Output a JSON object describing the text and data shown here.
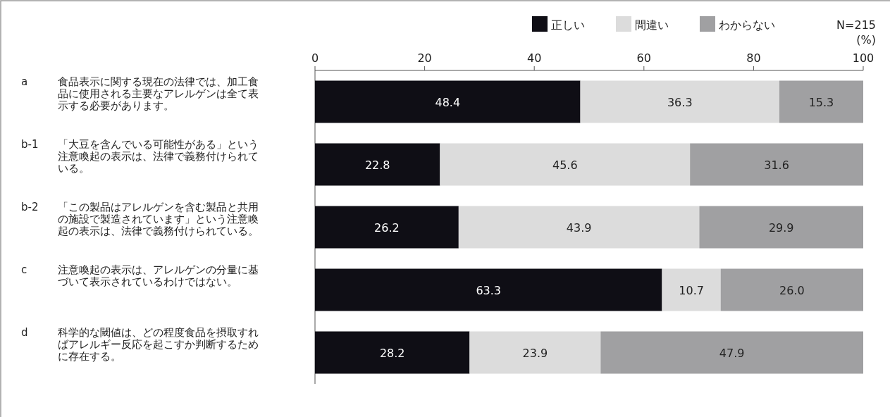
{
  "chart_data": {
    "type": "bar",
    "orientation": "horizontal",
    "stacked": true,
    "categories": [
      "a 食品表示に関する現在の法律では、加工食品に使用される主要なアレルゲンは全て表示する必要があります。",
      "b-1 「大豆を含んでいる可能性がある」という注意喚起の表示は、法律で義務付けられている。",
      "b-2 「この製品はアレルゲンを含む製品と共用の施設で製造されています」という注意喚起の表示は、法律で義務付けられている。",
      "c 注意喚起の表示は、アレルゲンの分量に基づいて表示されているわけではない。",
      "d 科学的な閾値は、どの程度食品を摂取すればアレルギー反応を起こすか判断するために存在する。"
    ],
    "series": [
      {
        "name": "正しい",
        "color": "#0f0e15",
        "values": [
          48.4,
          22.8,
          26.2,
          63.3,
          28.2
        ],
        "value_labels": [
          "48.4",
          "22.8",
          "26.2",
          "63.3",
          "28.2"
        ]
      },
      {
        "name": "間違い",
        "color": "#dcdcdc",
        "values": [
          36.3,
          45.6,
          43.9,
          10.7,
          23.9
        ],
        "value_labels": [
          "36.3",
          "45.6",
          "43.9",
          "10.7",
          "23.9"
        ]
      },
      {
        "name": "わからない",
        "color": "#a0a0a2",
        "values": [
          15.3,
          31.6,
          29.9,
          26.0,
          47.9
        ],
        "value_labels": [
          "15.3",
          "31.6",
          "29.9",
          "26.0",
          "47.9"
        ]
      }
    ],
    "xlim": [
      0,
      100
    ],
    "xticks": [
      0,
      20,
      40,
      60,
      80,
      100
    ],
    "legend": "top right",
    "grid": false,
    "annotations": [
      "N=215",
      "(%)"
    ]
  }
}
